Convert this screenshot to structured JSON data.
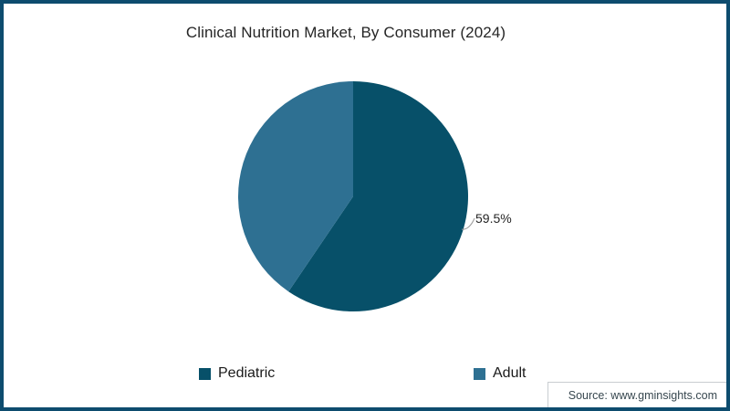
{
  "window": {
    "frame_border_color": "#0D4C6E",
    "background_color": "#FFFFFF"
  },
  "header": {
    "title": "Clinical Nutrition Market, By Consumer (2024)"
  },
  "chart_data": {
    "type": "pie",
    "title": "Clinical Nutrition Market, By Consumer (2024)",
    "categories": [
      "Pediatric",
      "Adult"
    ],
    "values": [
      59.5,
      40.5
    ],
    "unit": "%",
    "colors": [
      "#075069",
      "#2E7092"
    ],
    "start_angle": "12-oclock-clockwise",
    "visible_label": "59.5%",
    "visible_label_series": "Pediatric",
    "legend_position": "bottom",
    "legend": [
      {
        "label": "Pediatric",
        "color": "#075069"
      },
      {
        "label": "Adult",
        "color": "#2E7092"
      }
    ],
    "leader_line_color": "#999999"
  },
  "footer": {
    "source": "Source: www.gminsights.com"
  }
}
